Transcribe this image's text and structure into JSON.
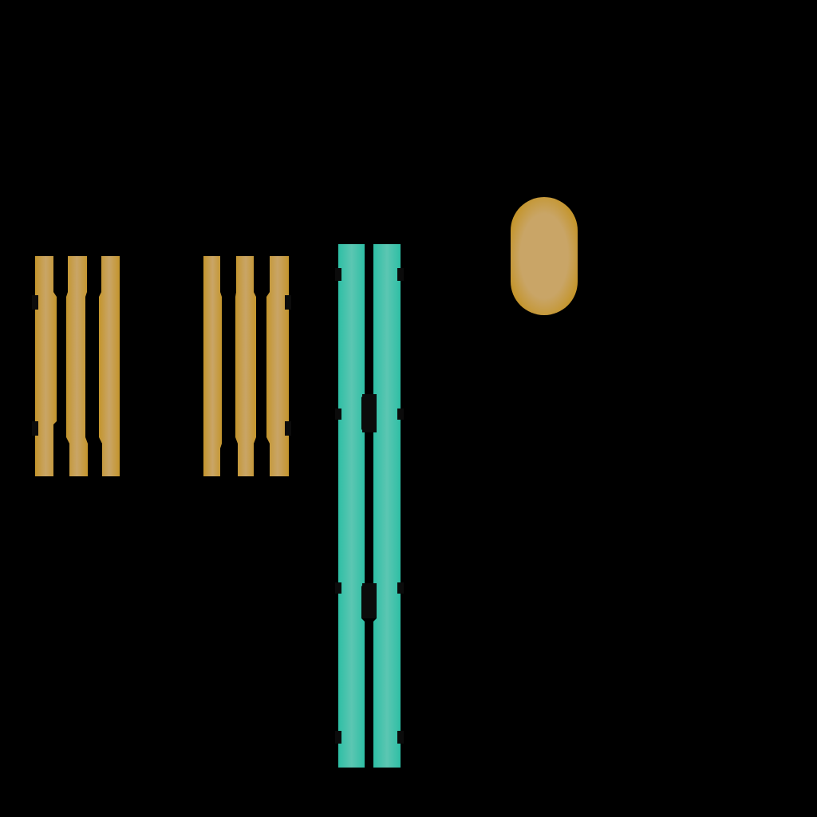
{
  "background_color": "#000000",
  "palette": {
    "gold_edge": "#C4952C",
    "gold_fill": "#C9A567",
    "teal_edge": "#2EBFA5",
    "teal_fill": "#5CC6B2",
    "notch": "#0B0B0B"
  },
  "groups": [
    {
      "name": "gold-bar-group-left",
      "bar_count": 3,
      "color": "gold"
    },
    {
      "name": "gold-bar-group-middle",
      "bar_count": 3,
      "color": "gold"
    },
    {
      "name": "teal-bar-pair",
      "bar_count": 2,
      "color": "teal"
    }
  ],
  "shapes": [
    {
      "name": "gold-capsule",
      "color": "gold"
    }
  ]
}
